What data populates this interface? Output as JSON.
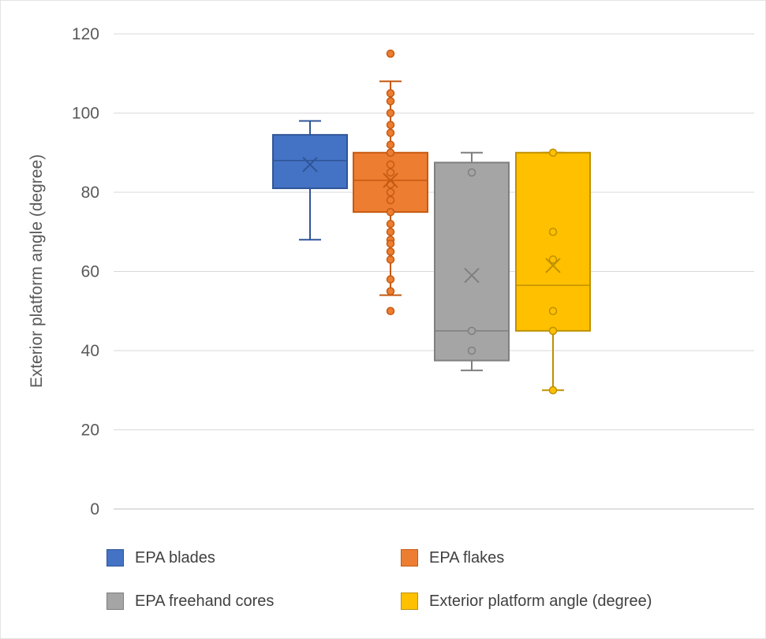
{
  "chart_data": {
    "type": "box",
    "title": "",
    "xlabel": "",
    "ylabel": "Exterior platform angle (degree)",
    "ylim": [
      0,
      120
    ],
    "yticks": [
      0,
      20,
      40,
      60,
      80,
      100,
      120
    ],
    "grid": true,
    "legend_position": "bottom",
    "series": [
      {
        "name": "EPA blades",
        "color": "#4472C4",
        "stroke": "#2F5597",
        "min": 68,
        "q1": 81,
        "median": 88,
        "q3": 94.5,
        "max": 98,
        "mean": 87,
        "points": []
      },
      {
        "name": "EPA flakes",
        "color": "#ED7D31",
        "stroke": "#C55A11",
        "min": 54,
        "q1": 75,
        "median": 83,
        "q3": 90,
        "max": 108,
        "mean": 83,
        "points": [
          115,
          105,
          103,
          100,
          97,
          95,
          92,
          90,
          87,
          85,
          82,
          80,
          78,
          75,
          72,
          70,
          68,
          67,
          65,
          63,
          58,
          55,
          50
        ]
      },
      {
        "name": "EPA freehand cores",
        "color": "#A5A5A5",
        "stroke": "#7F7F7F",
        "min": 35,
        "q1": 37.5,
        "median": 45,
        "q3": 87.5,
        "max": 90,
        "mean": 59,
        "points": [
          85,
          45,
          40
        ]
      },
      {
        "name": "Exterior platform angle (degree)",
        "color": "#FFC000",
        "stroke": "#BF9000",
        "min": 30,
        "q1": 45,
        "median": 56.5,
        "q3": 90,
        "max": 90,
        "mean": 61.5,
        "points": [
          90,
          70,
          63,
          50,
          45,
          30
        ]
      }
    ]
  }
}
